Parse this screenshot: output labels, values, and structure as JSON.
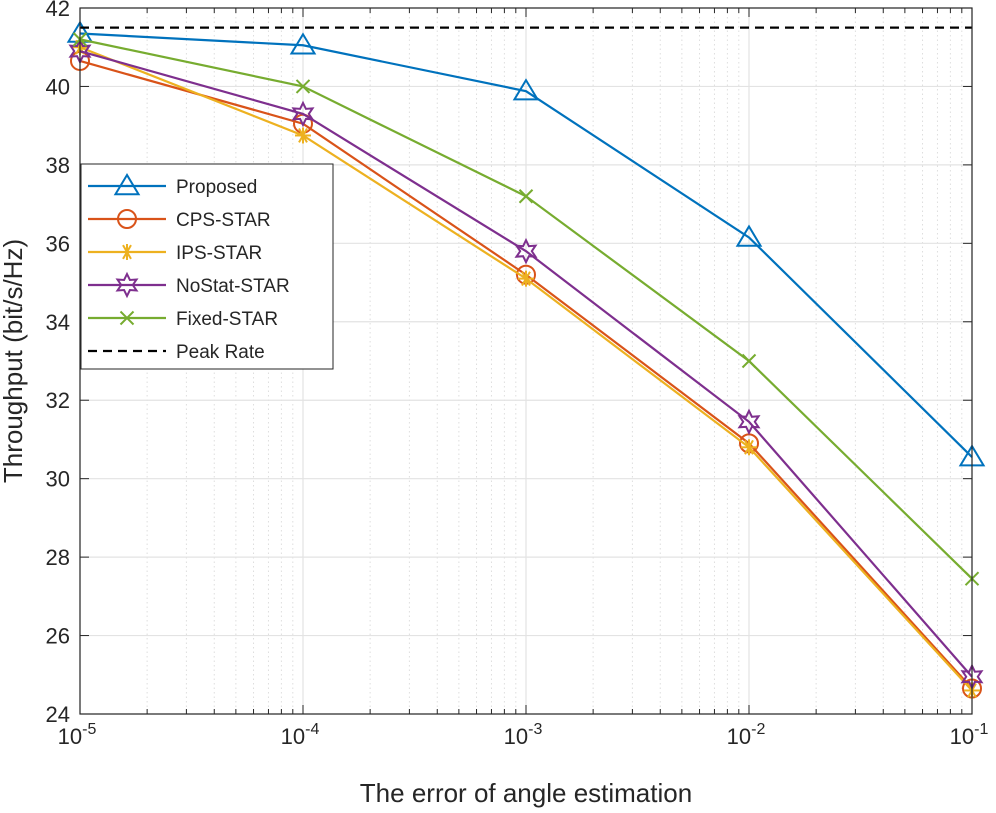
{
  "chart_data": {
    "type": "line",
    "title": "",
    "xlabel": "The error of angle estimation",
    "ylabel": "Throughput (bit/s/Hz)",
    "xscale": "log",
    "x": [
      1e-05,
      0.0001,
      0.001,
      0.01,
      0.1
    ],
    "xlim": [
      1e-05,
      0.1
    ],
    "ylim": [
      24,
      42
    ],
    "xticks": [
      {
        "base": "10",
        "exp": "-5"
      },
      {
        "base": "10",
        "exp": "-4"
      },
      {
        "base": "10",
        "exp": "-3"
      },
      {
        "base": "10",
        "exp": "-2"
      },
      {
        "base": "10",
        "exp": "-1"
      }
    ],
    "yticks": [
      "24",
      "26",
      "28",
      "30",
      "32",
      "34",
      "36",
      "38",
      "40",
      "42"
    ],
    "ytick_values": [
      24,
      26,
      28,
      30,
      32,
      34,
      36,
      38,
      40,
      42
    ],
    "grid": true,
    "legend_position": "center-left",
    "series": [
      {
        "name": "Proposed",
        "color": "#0072BD",
        "marker": "triangle",
        "values": [
          41.35,
          41.05,
          39.88,
          36.15,
          30.55
        ]
      },
      {
        "name": "CPS-STAR",
        "color": "#D95319",
        "marker": "circle",
        "values": [
          40.65,
          39.05,
          35.2,
          30.9,
          24.65
        ]
      },
      {
        "name": "IPS-STAR",
        "color": "#EDB120",
        "marker": "asterisk",
        "values": [
          41.0,
          38.75,
          35.1,
          30.8,
          24.6
        ]
      },
      {
        "name": "NoStat-STAR",
        "color": "#7E2F8E",
        "marker": "hexagram",
        "values": [
          40.9,
          39.3,
          35.8,
          31.45,
          24.95
        ]
      },
      {
        "name": "Fixed-STAR",
        "color": "#77AC30",
        "marker": "x",
        "values": [
          41.2,
          40.0,
          37.2,
          33.0,
          27.45
        ]
      },
      {
        "name": "Peak Rate",
        "color": "#000000",
        "marker": "none",
        "dashed": true,
        "values": [
          41.5,
          41.5,
          41.5,
          41.5,
          41.5
        ]
      }
    ]
  }
}
